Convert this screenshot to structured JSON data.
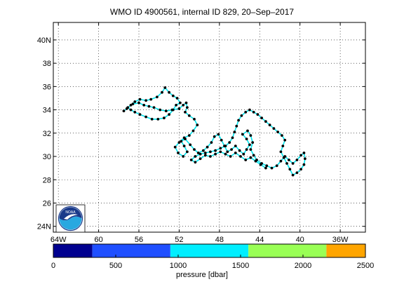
{
  "title": "WMO ID 4900561, internal ID 829, 20–Sep–2017",
  "map": {
    "lat_ticks": [
      "24N",
      "26",
      "28",
      "30",
      "32",
      "34",
      "36",
      "38",
      "40N"
    ],
    "lat_values": [
      24,
      26,
      28,
      30,
      32,
      34,
      36,
      38,
      40
    ],
    "lon_ticks": [
      "64W",
      "60",
      "56",
      "52",
      "48",
      "44",
      "40",
      "36W"
    ],
    "lon_values": [
      -64,
      -60,
      -56,
      -52,
      -48,
      -44,
      -40,
      -36
    ],
    "lat_range": [
      23.5,
      41.5
    ],
    "lon_range": [
      -64.5,
      -33.5
    ],
    "grid": "dotted",
    "track_color": "#00e5ee",
    "point_color": "#000000",
    "track": [
      [
        -57.5,
        33.9
      ],
      [
        -57.2,
        34.1
      ],
      [
        -56.8,
        34.4
      ],
      [
        -56.4,
        34.7
      ],
      [
        -55.9,
        34.9
      ],
      [
        -55.3,
        34.8
      ],
      [
        -54.8,
        34.9
      ],
      [
        -54.2,
        35.1
      ],
      [
        -53.7,
        35.5
      ],
      [
        -53.4,
        35.9
      ],
      [
        -53.0,
        35.5
      ],
      [
        -52.6,
        35.2
      ],
      [
        -52.2,
        35.0
      ],
      [
        -51.9,
        34.6
      ],
      [
        -52.3,
        34.4
      ],
      [
        -52.6,
        34.0
      ],
      [
        -53.0,
        33.6
      ],
      [
        -53.5,
        33.3
      ],
      [
        -54.1,
        33.2
      ],
      [
        -54.7,
        33.2
      ],
      [
        -55.3,
        33.4
      ],
      [
        -55.9,
        33.6
      ],
      [
        -56.4,
        33.8
      ],
      [
        -56.8,
        34.0
      ],
      [
        -57.1,
        34.2
      ],
      [
        -56.6,
        34.5
      ],
      [
        -56.0,
        34.6
      ],
      [
        -55.5,
        34.4
      ],
      [
        -55.0,
        34.3
      ],
      [
        -54.5,
        34.2
      ],
      [
        -53.9,
        34.0
      ],
      [
        -53.3,
        33.9
      ],
      [
        -52.7,
        34.0
      ],
      [
        -52.0,
        34.1
      ],
      [
        -51.6,
        34.4
      ],
      [
        -51.3,
        34.6
      ],
      [
        -51.2,
        34.2
      ],
      [
        -51.4,
        33.8
      ],
      [
        -51.0,
        33.5
      ],
      [
        -50.5,
        33.2
      ],
      [
        -50.2,
        32.7
      ],
      [
        -50.6,
        32.2
      ],
      [
        -51.0,
        31.8
      ],
      [
        -51.5,
        31.6
      ],
      [
        -52.0,
        31.2
      ],
      [
        -52.4,
        30.8
      ],
      [
        -52.1,
        30.3
      ],
      [
        -51.6,
        30.0
      ],
      [
        -51.2,
        30.4
      ],
      [
        -51.5,
        30.9
      ],
      [
        -51.8,
        31.3
      ],
      [
        -51.4,
        31.5
      ],
      [
        -50.9,
        31.0
      ],
      [
        -50.5,
        30.6
      ],
      [
        -50.1,
        30.3
      ],
      [
        -49.6,
        30.5
      ],
      [
        -49.2,
        30.8
      ],
      [
        -48.8,
        31.2
      ],
      [
        -48.5,
        31.7
      ],
      [
        -48.1,
        31.9
      ],
      [
        -47.8,
        31.4
      ],
      [
        -47.5,
        30.9
      ],
      [
        -47.2,
        30.4
      ],
      [
        -46.8,
        30.6
      ],
      [
        -46.4,
        30.9
      ],
      [
        -46.0,
        30.5
      ],
      [
        -45.6,
        30.2
      ],
      [
        -45.3,
        30.6
      ],
      [
        -45.0,
        31.0
      ],
      [
        -45.3,
        31.5
      ],
      [
        -45.7,
        31.9
      ],
      [
        -45.2,
        32.2
      ],
      [
        -44.9,
        31.8
      ],
      [
        -44.7,
        31.2
      ],
      [
        -44.9,
        30.6
      ],
      [
        -44.6,
        30.1
      ],
      [
        -44.3,
        29.7
      ],
      [
        -43.8,
        29.4
      ],
      [
        -43.3,
        29.2
      ],
      [
        -42.8,
        29.0
      ],
      [
        -42.3,
        29.2
      ],
      [
        -41.9,
        29.6
      ],
      [
        -41.5,
        30.0
      ],
      [
        -41.1,
        29.7
      ],
      [
        -40.7,
        29.4
      ],
      [
        -40.3,
        29.7
      ],
      [
        -39.9,
        30.1
      ],
      [
        -39.6,
        30.3
      ],
      [
        -39.5,
        29.8
      ],
      [
        -39.6,
        29.3
      ],
      [
        -39.9,
        28.9
      ],
      [
        -40.3,
        28.6
      ],
      [
        -40.7,
        28.4
      ],
      [
        -41.0,
        28.9
      ],
      [
        -41.3,
        29.4
      ],
      [
        -41.6,
        29.9
      ],
      [
        -41.9,
        30.4
      ],
      [
        -41.7,
        30.9
      ],
      [
        -41.5,
        31.4
      ],
      [
        -41.8,
        31.8
      ],
      [
        -42.2,
        32.1
      ],
      [
        -42.6,
        32.4
      ],
      [
        -43.0,
        32.7
      ],
      [
        -43.4,
        33.0
      ],
      [
        -43.8,
        33.3
      ],
      [
        -44.2,
        33.6
      ],
      [
        -44.6,
        33.8
      ],
      [
        -45.0,
        34.0
      ],
      [
        -45.4,
        33.8
      ],
      [
        -45.8,
        33.5
      ],
      [
        -46.1,
        33.1
      ],
      [
        -46.3,
        32.6
      ],
      [
        -46.5,
        32.1
      ],
      [
        -46.7,
        31.6
      ],
      [
        -47.0,
        31.2
      ],
      [
        -47.4,
        30.9
      ],
      [
        -47.9,
        30.7
      ],
      [
        -48.4,
        30.5
      ],
      [
        -48.9,
        30.4
      ],
      [
        -49.4,
        30.3
      ],
      [
        -49.9,
        30.2
      ],
      [
        -50.4,
        30.0
      ],
      [
        -50.8,
        29.7
      ],
      [
        -50.4,
        29.5
      ],
      [
        -49.9,
        29.8
      ],
      [
        -49.4,
        30.1
      ],
      [
        -48.9,
        30.0
      ],
      [
        -48.4,
        30.2
      ],
      [
        -47.9,
        30.4
      ],
      [
        -47.4,
        30.2
      ],
      [
        -46.9,
        30.0
      ],
      [
        -46.4,
        30.3
      ],
      [
        -45.9,
        30.0
      ],
      [
        -45.4,
        29.7
      ],
      [
        -44.9,
        29.9
      ],
      [
        -44.4,
        29.6
      ],
      [
        -43.9,
        29.3
      ],
      [
        -43.4,
        29.0
      ]
    ]
  },
  "colorbar": {
    "title": "pressure [dbar]",
    "tick_labels": [
      "0",
      "500",
      "1000",
      "1500",
      "2000",
      "2500"
    ],
    "tick_values": [
      0,
      500,
      1000,
      1500,
      2000,
      2500
    ],
    "range": [
      0,
      2500
    ],
    "segments": [
      {
        "from": 0,
        "to": 312.5,
        "color": "#00008f"
      },
      {
        "from": 312.5,
        "to": 937.5,
        "color": "#1f4fff"
      },
      {
        "from": 937.5,
        "to": 1562.5,
        "color": "#00eeff"
      },
      {
        "from": 1562.5,
        "to": 2187.5,
        "color": "#99ff55"
      },
      {
        "from": 2187.5,
        "to": 2500,
        "color": "#ffa500"
      }
    ]
  },
  "logo": {
    "text": "NOAA",
    "colors": {
      "sky": "#1a3a8a",
      "wave": "#28a8e0",
      "bird": "#ffffff"
    }
  }
}
